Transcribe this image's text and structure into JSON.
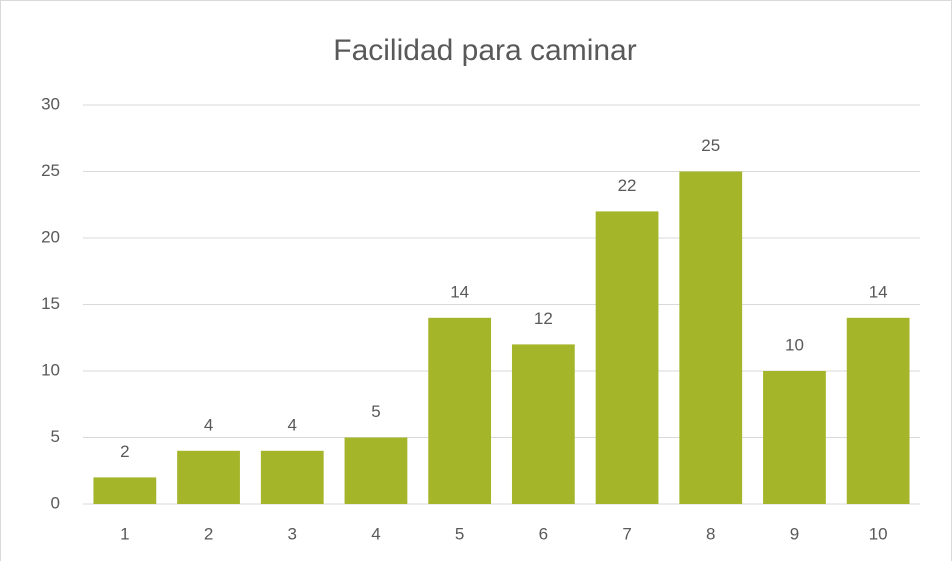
{
  "chart_data": {
    "type": "bar",
    "title": "Facilidad para caminar",
    "categories": [
      "1",
      "2",
      "3",
      "4",
      "5",
      "6",
      "7",
      "8",
      "9",
      "10"
    ],
    "values": [
      2,
      4,
      4,
      5,
      14,
      12,
      22,
      25,
      10,
      14
    ],
    "color": "#a5b52a",
    "ylim": [
      0,
      30
    ],
    "yticks": [
      0,
      5,
      10,
      15,
      20,
      25,
      30
    ],
    "grid": true
  }
}
